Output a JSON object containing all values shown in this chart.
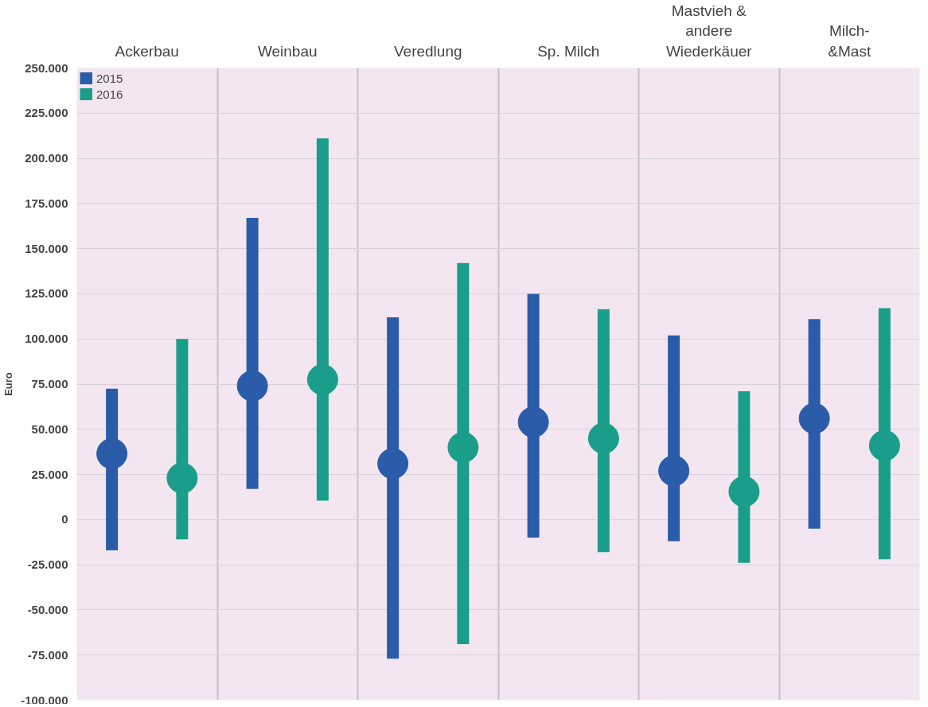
{
  "chart_data": {
    "type": "scatter",
    "ylabel": "Euro",
    "categories": [
      "Ackerbau",
      "Weinbau",
      "Veredlung",
      "Sp. Milch",
      "Mastvieh &\nandere\nWiederkäuer",
      "Milch-\n&Mast"
    ],
    "series": [
      {
        "name": "2015",
        "color": "#2a5caa",
        "values": [
          36500,
          74000,
          31000,
          54000,
          27000,
          56000
        ],
        "errors": [
          [
            -17000,
            72500
          ],
          [
            17000,
            167000
          ],
          [
            -77000,
            112000
          ],
          [
            -10000,
            125000
          ],
          [
            -12000,
            102000
          ],
          [
            -5000,
            111000
          ]
        ]
      },
      {
        "name": "2016",
        "color": "#1a9e8a",
        "values": [
          23000,
          77500,
          40000,
          45000,
          15500,
          41000
        ],
        "errors": [
          [
            -11000,
            100000
          ],
          [
            10500,
            211000
          ],
          [
            -69000,
            142000
          ],
          [
            -18000,
            116500
          ],
          [
            -24000,
            71000
          ],
          [
            -22000,
            117000
          ]
        ]
      }
    ],
    "ylim": [
      -100000,
      250000
    ],
    "yticks": [
      {
        "value": -100000,
        "label": "-100.000"
      },
      {
        "value": -75000,
        "label": "-75.000"
      },
      {
        "value": -50000,
        "label": "-50.000"
      },
      {
        "value": -25000,
        "label": "-25.000"
      },
      {
        "value": 0,
        "label": "0"
      },
      {
        "value": 25000,
        "label": "25.000"
      },
      {
        "value": 50000,
        "label": "50.000"
      },
      {
        "value": 75000,
        "label": "75.000"
      },
      {
        "value": 100000,
        "label": "100.000"
      },
      {
        "value": 125000,
        "label": "125.000"
      },
      {
        "value": 150000,
        "label": "150.000"
      },
      {
        "value": 175000,
        "label": "175.000"
      },
      {
        "value": 200000,
        "label": "200.000"
      },
      {
        "value": 225000,
        "label": "225.000"
      },
      {
        "value": 250000,
        "label": "250.000"
      }
    ],
    "grid": true,
    "legend": "top left",
    "marker": "circle"
  }
}
